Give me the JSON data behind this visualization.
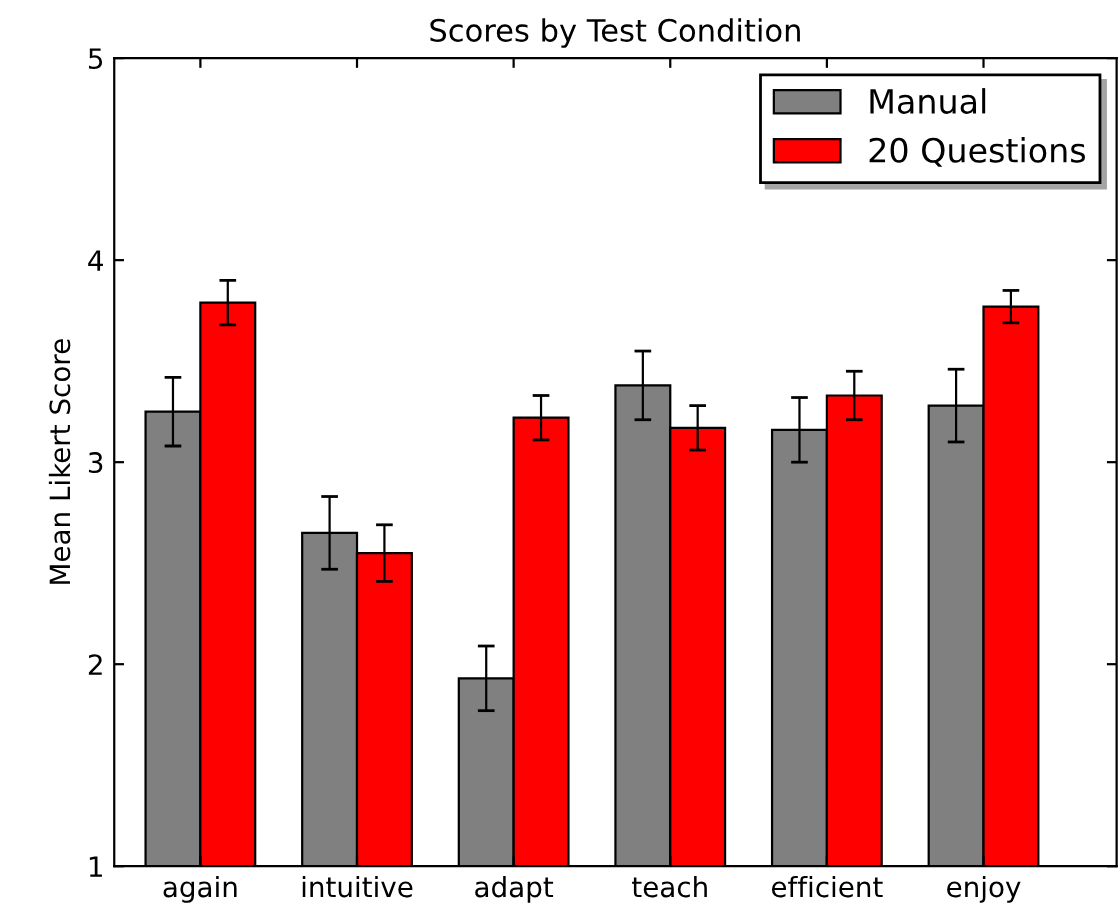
{
  "chart_data": {
    "type": "bar",
    "title": "Scores by Test Condition",
    "ylabel": "Mean Likert Score",
    "categories": [
      "again",
      "intuitive",
      "adapt",
      "teach",
      "efficient",
      "enjoy"
    ],
    "series": [
      {
        "name": "Manual",
        "color": "#808080",
        "values": [
          3.25,
          2.65,
          1.93,
          3.38,
          3.16,
          3.28
        ],
        "errors": [
          0.17,
          0.18,
          0.16,
          0.17,
          0.16,
          0.18
        ]
      },
      {
        "name": "20 Questions",
        "color": "#ff0000",
        "values": [
          3.79,
          2.55,
          3.22,
          3.17,
          3.33,
          3.77
        ],
        "errors": [
          0.11,
          0.14,
          0.11,
          0.11,
          0.12,
          0.08
        ]
      }
    ],
    "ylim": [
      1,
      5
    ],
    "yticks": [
      1,
      2,
      3,
      4,
      5
    ],
    "grid": false,
    "legend": "top right"
  }
}
